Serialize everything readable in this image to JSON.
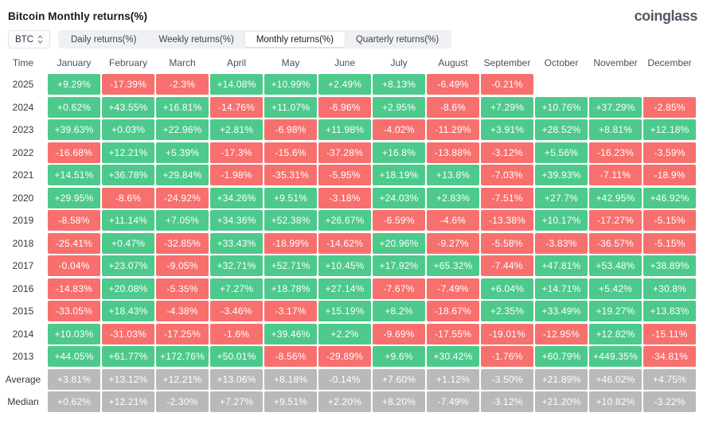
{
  "header": {
    "title": "Bitcoin Monthly returns(%)",
    "logo": "coinglass"
  },
  "controls": {
    "coin_selector": "BTC",
    "tabs": [
      {
        "label": "Daily returns(%)",
        "active": false
      },
      {
        "label": "Weekly returns(%)",
        "active": false
      },
      {
        "label": "Monthly returns(%)",
        "active": true
      },
      {
        "label": "Quarterly returns(%)",
        "active": false
      }
    ]
  },
  "colors": {
    "positive": "#4DC98C",
    "negative": "#F7706E",
    "summary": "#B9B9B9",
    "tab_bar": "#EEF0F3"
  },
  "chart_data": {
    "type": "heatmap",
    "title": "Bitcoin Monthly returns(%)",
    "columns": [
      "Time",
      "January",
      "February",
      "March",
      "April",
      "May",
      "June",
      "July",
      "August",
      "September",
      "October",
      "November",
      "December"
    ],
    "rows": [
      {
        "label": "2025",
        "summary": false,
        "values": [
          "+9.29%",
          "-17.39%",
          "-2.3%",
          "+14.08%",
          "+10.99%",
          "+2.49%",
          "+8.13%",
          "-6.49%",
          "-0.21%",
          "",
          "",
          ""
        ]
      },
      {
        "label": "2024",
        "summary": false,
        "values": [
          "+0.62%",
          "+43.55%",
          "+16.81%",
          "-14.76%",
          "+11.07%",
          "-6.96%",
          "+2.95%",
          "-8.6%",
          "+7.29%",
          "+10.76%",
          "+37.29%",
          "-2.85%"
        ]
      },
      {
        "label": "2023",
        "summary": false,
        "values": [
          "+39.63%",
          "+0.03%",
          "+22.96%",
          "+2.81%",
          "-6.98%",
          "+11.98%",
          "-4.02%",
          "-11.29%",
          "+3.91%",
          "+28.52%",
          "+8.81%",
          "+12.18%"
        ]
      },
      {
        "label": "2022",
        "summary": false,
        "values": [
          "-16.68%",
          "+12.21%",
          "+5.39%",
          "-17.3%",
          "-15.6%",
          "-37.28%",
          "+16.8%",
          "-13.88%",
          "-3.12%",
          "+5.56%",
          "-16.23%",
          "-3.59%"
        ]
      },
      {
        "label": "2021",
        "summary": false,
        "values": [
          "+14.51%",
          "+36.78%",
          "+29.84%",
          "-1.98%",
          "-35.31%",
          "-5.95%",
          "+18.19%",
          "+13.8%",
          "-7.03%",
          "+39.93%",
          "-7.11%",
          "-18.9%"
        ]
      },
      {
        "label": "2020",
        "summary": false,
        "values": [
          "+29.95%",
          "-8.6%",
          "-24.92%",
          "+34.26%",
          "+9.51%",
          "-3.18%",
          "+24.03%",
          "+2.83%",
          "-7.51%",
          "+27.7%",
          "+42.95%",
          "+46.92%"
        ]
      },
      {
        "label": "2019",
        "summary": false,
        "values": [
          "-8.58%",
          "+11.14%",
          "+7.05%",
          "+34.36%",
          "+52.38%",
          "+26.67%",
          "-6.59%",
          "-4.6%",
          "-13.38%",
          "+10.17%",
          "-17.27%",
          "-5.15%"
        ]
      },
      {
        "label": "2018",
        "summary": false,
        "values": [
          "-25.41%",
          "+0.47%",
          "-32.85%",
          "+33.43%",
          "-18.99%",
          "-14.62%",
          "+20.96%",
          "-9.27%",
          "-5.58%",
          "-3.83%",
          "-36.57%",
          "-5.15%"
        ]
      },
      {
        "label": "2017",
        "summary": false,
        "values": [
          "-0.04%",
          "+23.07%",
          "-9.05%",
          "+32.71%",
          "+52.71%",
          "+10.45%",
          "+17.92%",
          "+65.32%",
          "-7.44%",
          "+47.81%",
          "+53.48%",
          "+38.89%"
        ]
      },
      {
        "label": "2016",
        "summary": false,
        "values": [
          "-14.83%",
          "+20.08%",
          "-5.35%",
          "+7.27%",
          "+18.78%",
          "+27.14%",
          "-7.67%",
          "-7.49%",
          "+6.04%",
          "+14.71%",
          "+5.42%",
          "+30.8%"
        ]
      },
      {
        "label": "2015",
        "summary": false,
        "values": [
          "-33.05%",
          "+18.43%",
          "-4.38%",
          "-3.46%",
          "-3.17%",
          "+15.19%",
          "+8.2%",
          "-18.67%",
          "+2.35%",
          "+33.49%",
          "+19.27%",
          "+13.83%"
        ]
      },
      {
        "label": "2014",
        "summary": false,
        "values": [
          "+10.03%",
          "-31.03%",
          "-17.25%",
          "-1.6%",
          "+39.46%",
          "+2.2%",
          "-9.69%",
          "-17.55%",
          "-19.01%",
          "-12.95%",
          "+12.82%",
          "-15.11%"
        ]
      },
      {
        "label": "2013",
        "summary": false,
        "values": [
          "+44.05%",
          "+61.77%",
          "+172.76%",
          "+50.01%",
          "-8.56%",
          "-29.89%",
          "+9.6%",
          "+30.42%",
          "-1.76%",
          "+60.79%",
          "+449.35%",
          "-34.81%"
        ]
      },
      {
        "label": "Average",
        "summary": true,
        "values": [
          "+3.81%",
          "+13.12%",
          "+12.21%",
          "+13.06%",
          "+8.18%",
          "-0.14%",
          "+7.60%",
          "+1.12%",
          "-3.50%",
          "+21.89%",
          "+46.02%",
          "+4.75%"
        ]
      },
      {
        "label": "Median",
        "summary": true,
        "values": [
          "+0.62%",
          "+12.21%",
          "-2.30%",
          "+7.27%",
          "+9.51%",
          "+2.20%",
          "+8.20%",
          "-7.49%",
          "-3.12%",
          "+21.20%",
          "+10.82%",
          "-3.22%"
        ]
      }
    ]
  }
}
